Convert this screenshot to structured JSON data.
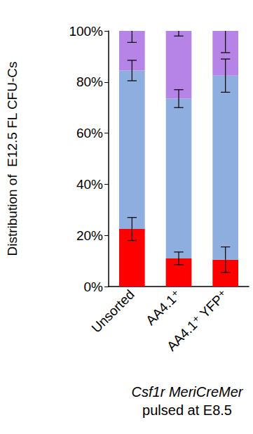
{
  "chart_data": {
    "type": "bar",
    "stacked": true,
    "title": "Csf1r MeriCreMer",
    "subtitle": "pulsed at E8.5",
    "ylabel": "Distribution of  E12.5 FL CFU-Cs",
    "categories": [
      "Unsorted",
      "AA4.1⁺",
      "AA4.1⁺ YFP⁺"
    ],
    "series": [
      {
        "color": "#ff0000",
        "values": [
          22.5,
          11,
          10.5
        ],
        "errors": [
          4.5,
          2.5,
          5
        ]
      },
      {
        "color": "#8eaee0",
        "values": [
          62,
          62.5,
          72
        ],
        "errors": [
          4,
          3.5,
          6.5
        ]
      },
      {
        "color": "#b683e6",
        "values": [
          15.5,
          26.5,
          17.5
        ],
        "errors": [
          4.5,
          2,
          8.5
        ]
      }
    ],
    "ylim": [
      0,
      100
    ],
    "yticks": [
      {
        "value": 0,
        "label": "0%"
      },
      {
        "value": 20,
        "label": "20%"
      },
      {
        "value": 40,
        "label": "40%"
      },
      {
        "value": 60,
        "label": "60%"
      },
      {
        "value": 80,
        "label": "80%"
      },
      {
        "value": 100,
        "label": "100%"
      }
    ],
    "grid": false
  }
}
